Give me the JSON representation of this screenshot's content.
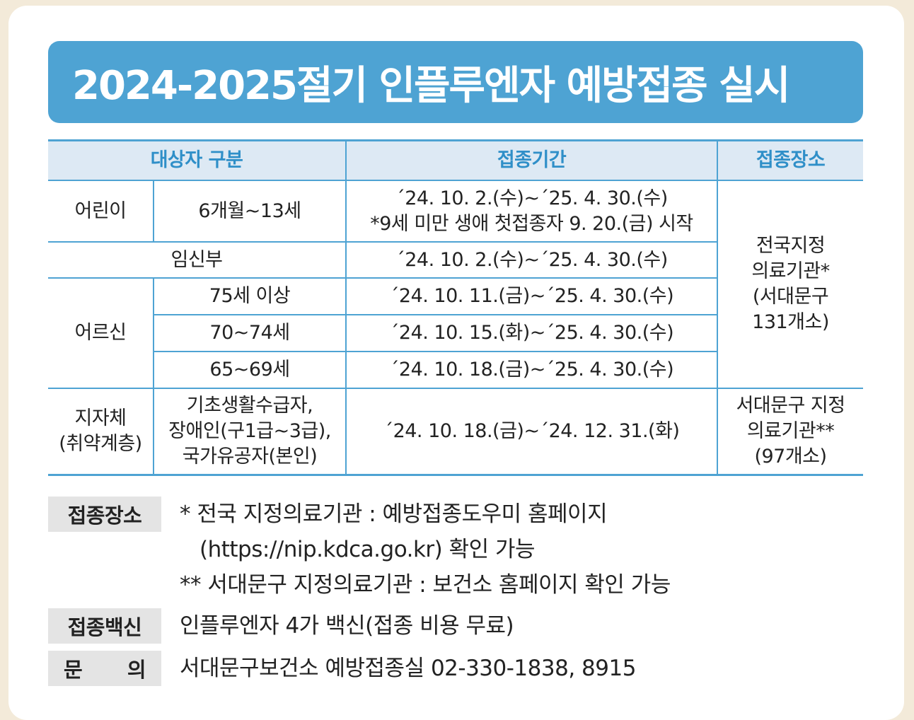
{
  "title": "2024-2025절기 인플루엔자 예방접종 실시",
  "table": {
    "headers": [
      "대상자 구분",
      "접종기간",
      "접종장소"
    ],
    "children_group": "어린이",
    "children_age": "6개월~13세",
    "children_period_1": "´24. 10. 2.(수)~´25. 4. 30.(수)",
    "children_period_2": "*9세 미만 생애 첫접종자 9. 20.(금) 시작",
    "pregnant_label": "임신부",
    "pregnant_period": "´24. 10. 2.(수)~´25. 4. 30.(수)",
    "elderly_group": "어르신",
    "elderly_rows": [
      {
        "age": "75세 이상",
        "period": "´24. 10. 11.(금)~´25. 4. 30.(수)"
      },
      {
        "age": "70~74세",
        "period": "´24. 10. 15.(화)~´25. 4. 30.(수)"
      },
      {
        "age": "65~69세",
        "period": "´24. 10. 18.(금)~´25. 4. 30.(수)"
      }
    ],
    "place_national": [
      "전국지정",
      "의료기관*",
      "(서대문구",
      "131개소)"
    ],
    "local_group": [
      "지자체",
      "(취약계층)"
    ],
    "local_targets": [
      "기초생활수급자,",
      "장애인(구1급~3급),",
      "국가유공자(본인)"
    ],
    "local_period": "´24. 10. 18.(금)~´24. 12. 31.(화)",
    "place_local": [
      "서대문구 지정",
      "의료기관**",
      "(97개소)"
    ]
  },
  "notes": {
    "place_label": "접종장소",
    "place_lines": [
      "* 전국 지정의료기관 : 예방접종도우미 홈페이지",
      "(https://nip.kdca.go.kr) 확인 가능",
      "** 서대문구 지정의료기관 : 보건소 홈페이지 확인 가능"
    ],
    "vaccine_label": "접종백신",
    "vaccine_text": "인플루엔자 4가 백신(접종 비용 무료)",
    "contact_label_1": "문",
    "contact_label_2": "의",
    "contact_text": "서대문구보건소 예방접종실 02-330-1838, 8915"
  },
  "colors": {
    "accent": "#4ea3d3",
    "header_bg": "#dde9f4",
    "header_text": "#2f8fc8",
    "label_bg": "#e4e4e4"
  }
}
